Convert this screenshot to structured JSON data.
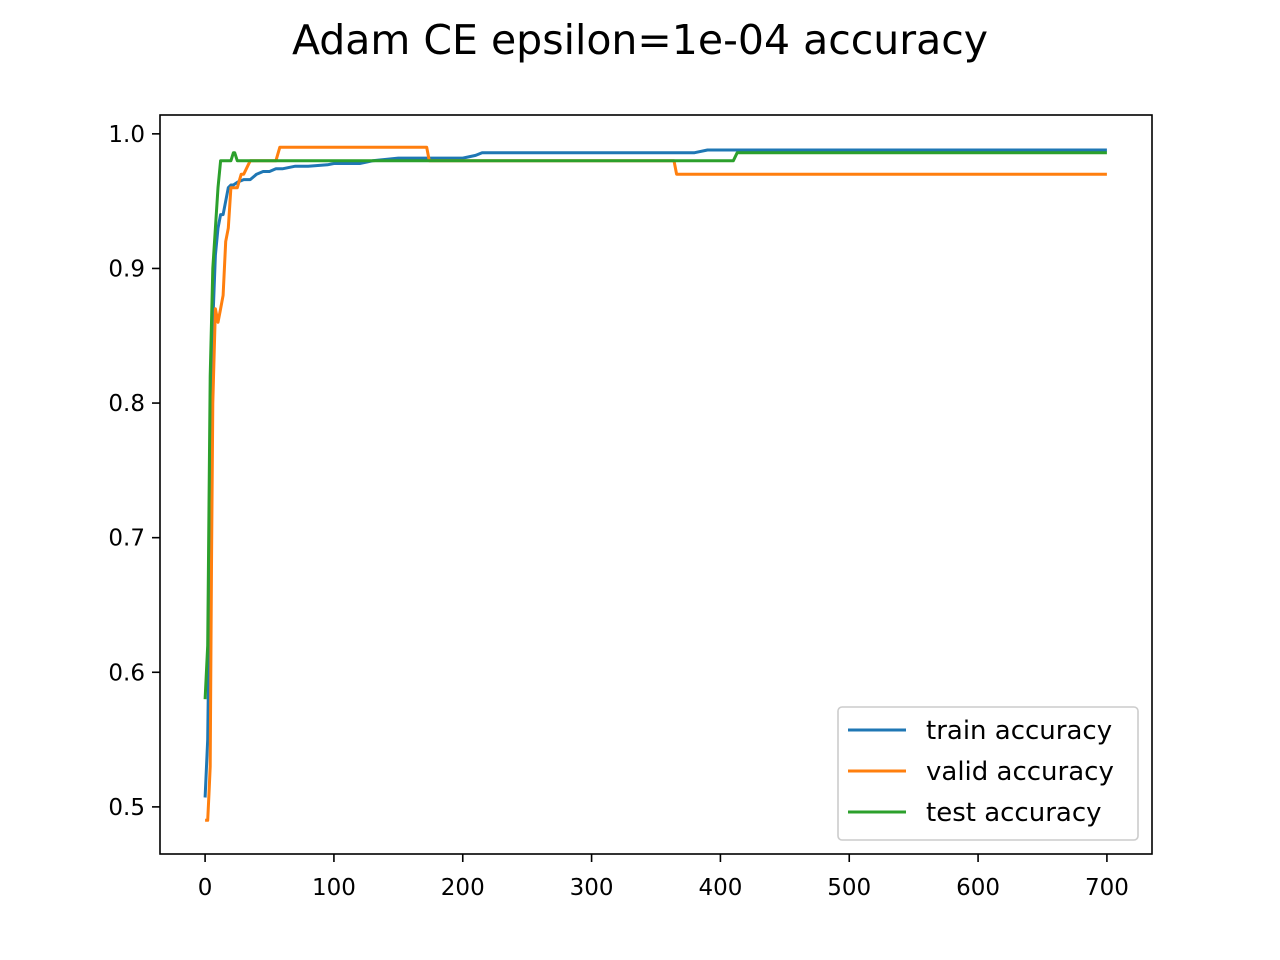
{
  "chart_data": {
    "type": "line",
    "title": "Adam CE epsilon=1e-04 accuracy",
    "xlabel": "",
    "ylabel": "",
    "xlim": [
      -35,
      735
    ],
    "ylim": [
      0.465,
      1.014
    ],
    "xticks": [
      0,
      100,
      200,
      300,
      400,
      500,
      600,
      700
    ],
    "yticks": [
      0.5,
      0.6,
      0.7,
      0.8,
      0.9,
      1.0
    ],
    "xtick_labels": [
      "0",
      "100",
      "200",
      "300",
      "400",
      "500",
      "600",
      "700"
    ],
    "ytick_labels": [
      "0.5",
      "0.6",
      "0.7",
      "0.8",
      "0.9",
      "1.0"
    ],
    "grid": false,
    "legend_position": "lower-right",
    "series": [
      {
        "name": "train accuracy",
        "color": "#1f77b4",
        "x": [
          0,
          2,
          4,
          6,
          8,
          10,
          12,
          14,
          16,
          18,
          20,
          22,
          25,
          30,
          35,
          40,
          45,
          50,
          55,
          60,
          70,
          80,
          95,
          100,
          120,
          130,
          150,
          180,
          200,
          210,
          215,
          250,
          300,
          350,
          380,
          390,
          450,
          500,
          600,
          700
        ],
        "values": [
          0.507,
          0.55,
          0.7,
          0.86,
          0.91,
          0.93,
          0.94,
          0.94,
          0.95,
          0.96,
          0.962,
          0.962,
          0.964,
          0.966,
          0.966,
          0.97,
          0.972,
          0.972,
          0.974,
          0.974,
          0.976,
          0.976,
          0.977,
          0.978,
          0.978,
          0.98,
          0.982,
          0.982,
          0.982,
          0.984,
          0.986,
          0.986,
          0.986,
          0.986,
          0.986,
          0.988,
          0.988,
          0.988,
          0.988,
          0.988
        ]
      },
      {
        "name": "valid accuracy",
        "color": "#ff7f0e",
        "x": [
          0,
          1,
          2,
          3,
          4,
          5,
          6,
          8,
          10,
          12,
          14,
          16,
          18,
          20,
          22,
          25,
          28,
          30,
          35,
          40,
          55,
          58,
          60,
          100,
          150,
          172,
          174,
          200,
          300,
          364,
          366,
          400,
          500,
          600,
          700
        ],
        "values": [
          0.49,
          0.49,
          0.49,
          0.51,
          0.53,
          0.68,
          0.8,
          0.87,
          0.86,
          0.87,
          0.88,
          0.92,
          0.93,
          0.96,
          0.96,
          0.96,
          0.97,
          0.97,
          0.98,
          0.98,
          0.98,
          0.99,
          0.99,
          0.99,
          0.99,
          0.99,
          0.98,
          0.98,
          0.98,
          0.98,
          0.97,
          0.97,
          0.97,
          0.97,
          0.97
        ]
      },
      {
        "name": "test accuracy",
        "color": "#2ca02c",
        "x": [
          0,
          2,
          4,
          6,
          8,
          10,
          12,
          14,
          16,
          18,
          20,
          22,
          23,
          25,
          27,
          30,
          50,
          100,
          200,
          300,
          410,
          413,
          415,
          500,
          600,
          700
        ],
        "values": [
          0.58,
          0.62,
          0.82,
          0.9,
          0.93,
          0.96,
          0.98,
          0.98,
          0.98,
          0.98,
          0.98,
          0.986,
          0.986,
          0.98,
          0.98,
          0.98,
          0.98,
          0.98,
          0.98,
          0.98,
          0.98,
          0.986,
          0.986,
          0.986,
          0.986,
          0.986
        ]
      }
    ]
  }
}
